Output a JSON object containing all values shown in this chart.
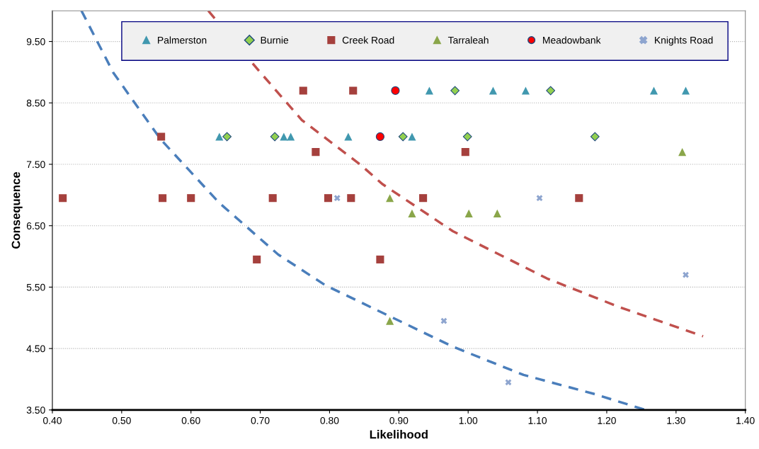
{
  "chart_data": {
    "type": "scatter",
    "xlabel": "Likelihood",
    "ylabel": "Consequence",
    "xlim": [
      0.4,
      1.4
    ],
    "ylim": [
      3.5,
      10.0
    ],
    "xticks": [
      {
        "value": 0.4,
        "label": "0.40"
      },
      {
        "value": 0.5,
        "label": "0.50"
      },
      {
        "value": 0.6,
        "label": "0.60"
      },
      {
        "value": 0.7,
        "label": "0.70"
      },
      {
        "value": 0.8,
        "label": "0.80"
      },
      {
        "value": 0.9,
        "label": "0.90"
      },
      {
        "value": 1.0,
        "label": "1.00"
      },
      {
        "value": 1.1,
        "label": "1.10"
      },
      {
        "value": 1.2,
        "label": "1.20"
      },
      {
        "value": 1.3,
        "label": "1.30"
      },
      {
        "value": 1.4,
        "label": "1.40"
      }
    ],
    "yticks": [
      {
        "value": 3.5,
        "label": "3.50"
      },
      {
        "value": 4.5,
        "label": "4.50"
      },
      {
        "value": 5.5,
        "label": "5.50"
      },
      {
        "value": 6.5,
        "label": "6.50"
      },
      {
        "value": 7.5,
        "label": "7.50"
      },
      {
        "value": 8.5,
        "label": "8.50"
      },
      {
        "value": 9.5,
        "label": "9.50"
      }
    ],
    "grid": "y",
    "legend": "top",
    "series": [
      {
        "name": "Palmerston",
        "marker": "triangle",
        "color": "#4198af",
        "x": [
          0.641,
          0.734,
          0.744,
          0.827,
          0.919,
          0.944,
          1.036,
          1.083,
          1.268,
          1.314
        ],
        "values": [
          7.95,
          7.95,
          7.95,
          7.95,
          7.95,
          8.7,
          8.7,
          8.7,
          8.7,
          8.7
        ]
      },
      {
        "name": "Burnie",
        "marker": "diamond",
        "color": "#92d050",
        "x": [
          0.652,
          0.721,
          0.906,
          0.999,
          1.183,
          0.981,
          1.119
        ],
        "values": [
          7.95,
          7.95,
          7.95,
          7.95,
          7.95,
          8.7,
          8.7
        ]
      },
      {
        "name": "Creek Road",
        "marker": "square",
        "color": "#a5403d",
        "x": [
          0.762,
          0.834,
          0.557,
          0.78,
          0.996,
          0.415,
          0.559,
          0.6,
          0.718,
          0.798,
          0.831,
          0.935,
          1.16,
          0.695,
          0.873
        ],
        "values": [
          8.7,
          8.7,
          7.95,
          7.7,
          7.7,
          6.95,
          6.95,
          6.95,
          6.95,
          6.95,
          6.95,
          6.95,
          6.95,
          5.95,
          5.95
        ]
      },
      {
        "name": "Tarraleah",
        "marker": "triangle",
        "color": "#8aa64a",
        "x": [
          0.887,
          0.919,
          1.001,
          1.042,
          1.309,
          0.887
        ],
        "values": [
          6.95,
          6.7,
          6.7,
          6.7,
          7.7,
          4.95
        ]
      },
      {
        "name": "Meadowbank",
        "marker": "circle",
        "color": "#ff0000",
        "x": [
          0.873,
          0.895
        ],
        "values": [
          7.95,
          8.7
        ]
      },
      {
        "name": "Knights Road",
        "marker": "cross",
        "color": "#8ea5cf",
        "x": [
          0.811,
          1.103,
          1.314,
          0.965,
          1.058
        ],
        "values": [
          6.95,
          6.95,
          5.7,
          4.95,
          3.95
        ]
      },
      {
        "type": "line",
        "line_style": "dashed",
        "marker": "none",
        "color": "#4a7ebb",
        "x": [
          0.442,
          0.488,
          0.556,
          0.641,
          0.726,
          0.794,
          0.886,
          0.978,
          1.08,
          1.182,
          1.256
        ],
        "values": [
          10.0,
          8.99,
          7.91,
          6.87,
          6.03,
          5.53,
          5.03,
          4.53,
          4.07,
          3.76,
          3.5
        ]
      },
      {
        "type": "line",
        "line_style": "dashed",
        "marker": "none",
        "color": "#c0504d",
        "x": [
          0.625,
          0.699,
          0.76,
          0.845,
          0.876,
          0.978,
          1.114,
          1.217,
          1.339
        ],
        "values": [
          10.0,
          9.01,
          8.22,
          7.49,
          7.18,
          6.41,
          5.64,
          5.18,
          4.7
        ]
      }
    ]
  }
}
